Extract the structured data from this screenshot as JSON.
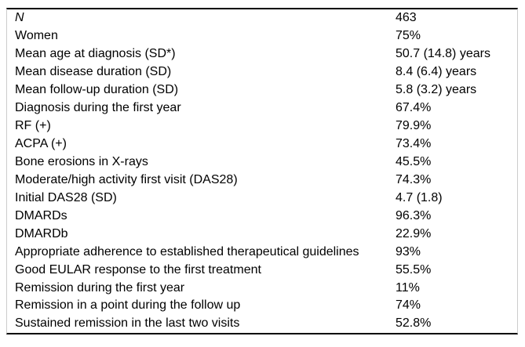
{
  "table": {
    "rows": [
      {
        "label": "N",
        "value": "463",
        "italic": true
      },
      {
        "label": "Women",
        "value": "75%"
      },
      {
        "label": "Mean age at diagnosis (SD*)",
        "value": "50.7 (14.8) years"
      },
      {
        "label": "Mean disease duration (SD)",
        "value": "8.4 (6.4) years"
      },
      {
        "label": "Mean follow-up duration (SD)",
        "value": "5.8 (3.2) years"
      },
      {
        "label": "Diagnosis during the first year",
        "value": "67.4%"
      },
      {
        "label": "RF (+)",
        "value": "79.9%"
      },
      {
        "label": "ACPA (+)",
        "value": "73.4%"
      },
      {
        "label": "Bone erosions in X-rays",
        "value": "45.5%"
      },
      {
        "label": "Moderate/high activity first visit (DAS28)",
        "value": "74.3%"
      },
      {
        "label": "Initial DAS28 (SD)",
        "value": "4.7 (1.8)"
      },
      {
        "label": "DMARDs",
        "value": "96.3%"
      },
      {
        "label": "DMARDb",
        "value": "22.9%"
      },
      {
        "label": "Appropriate adherence to established therapeutical guidelines",
        "value": "93%"
      },
      {
        "label": "Good EULAR response to the first treatment",
        "value": "55.5%"
      },
      {
        "label": "Remission during the first year",
        "value": "11%"
      },
      {
        "label": "Remission in a point during the follow up",
        "value": "74%"
      },
      {
        "label": "Sustained remission in the last two visits",
        "value": "52.8%"
      }
    ],
    "colors": {
      "rule": "#000000",
      "side_border": "#cccccc",
      "text": "#000000"
    }
  }
}
